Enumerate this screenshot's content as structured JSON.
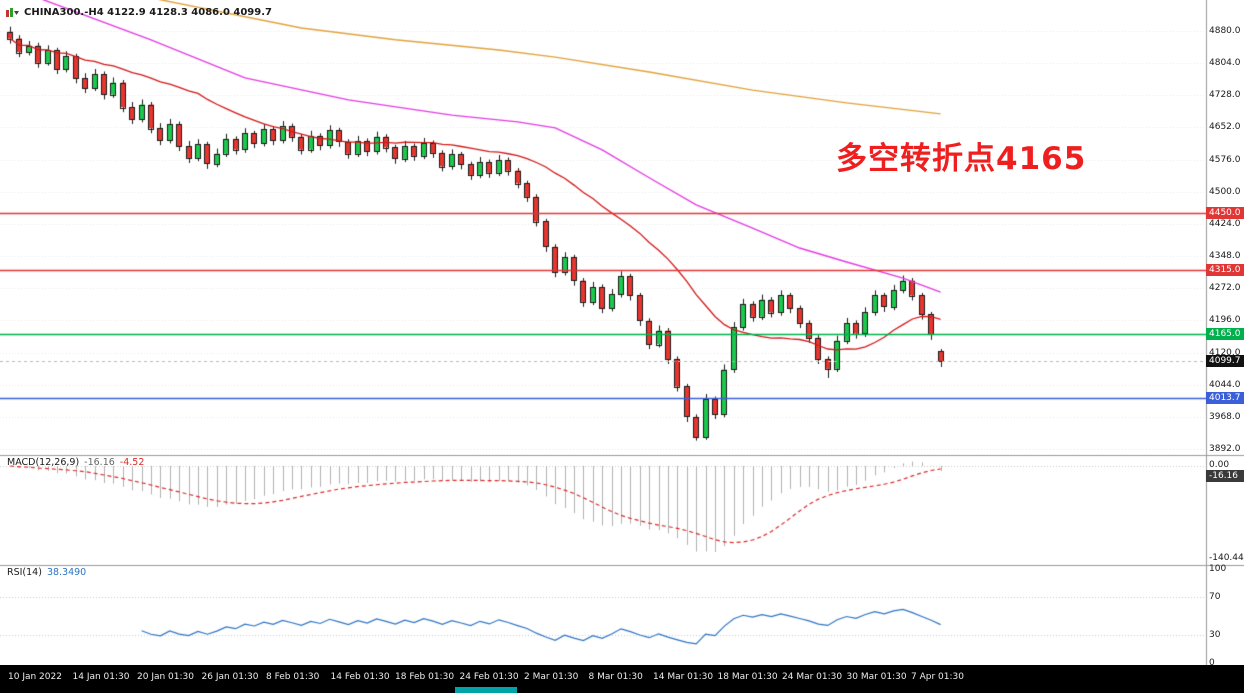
{
  "window": {
    "symbol_line": "CHINA300.-H4 4122.9 4128.3 4086.0 4099.7"
  },
  "annotation": {
    "text": "多空转折点4165",
    "color": "#ef1f1f"
  },
  "chart_data": {
    "type": "candlestick",
    "symbol": "CHINA300",
    "timeframe": "H4",
    "last_ohlc": {
      "open": 4122.9,
      "high": 4128.3,
      "low": 4086.0,
      "close": 4099.7
    },
    "ylim": [
      3878,
      4953
    ],
    "price_axis_ticks": [
      "4880.0",
      "4804.0",
      "4728.0",
      "4652.0",
      "4576.0",
      "4500.0",
      "4424.0",
      "4348.0",
      "4272.0",
      "4196.0",
      "4120.0",
      "4044.0",
      "3968.0",
      "3892.0"
    ],
    "colors": {
      "up": "#1bc94d",
      "down": "#e8352e",
      "outline": "#1a1a1a",
      "grid": "#e9e9e9",
      "ma_fast": "#d01818",
      "ma_mid": "#e23ce2",
      "ma_slow": "#e0a23c",
      "macd_hist": "#b0b0b0",
      "macd_signal": "#d92b2b",
      "rsi": "#2d74c4"
    },
    "candles": [
      [
        4878,
        4890,
        4850,
        4862
      ],
      [
        4862,
        4870,
        4818,
        4830
      ],
      [
        4830,
        4856,
        4822,
        4845
      ],
      [
        4845,
        4852,
        4793,
        4805
      ],
      [
        4805,
        4846,
        4798,
        4835
      ],
      [
        4835,
        4840,
        4778,
        4790
      ],
      [
        4790,
        4832,
        4782,
        4820
      ],
      [
        4820,
        4826,
        4756,
        4768
      ],
      [
        4768,
        4780,
        4733,
        4745
      ],
      [
        4745,
        4790,
        4738,
        4778
      ],
      [
        4778,
        4784,
        4718,
        4730
      ],
      [
        4730,
        4770,
        4722,
        4758
      ],
      [
        4758,
        4764,
        4688,
        4700
      ],
      [
        4700,
        4712,
        4660,
        4672
      ],
      [
        4672,
        4718,
        4664,
        4706
      ],
      [
        4706,
        4712,
        4638,
        4650
      ],
      [
        4650,
        4662,
        4610,
        4622
      ],
      [
        4622,
        4672,
        4614,
        4660
      ],
      [
        4660,
        4666,
        4596,
        4608
      ],
      [
        4608,
        4620,
        4568,
        4580
      ],
      [
        4580,
        4624,
        4572,
        4612
      ],
      [
        4612,
        4618,
        4554,
        4566
      ],
      [
        4566,
        4602,
        4558,
        4590
      ],
      [
        4590,
        4637,
        4582,
        4625
      ],
      [
        4625,
        4631,
        4588,
        4600
      ],
      [
        4600,
        4650,
        4592,
        4638
      ],
      [
        4638,
        4644,
        4603,
        4615
      ],
      [
        4615,
        4660,
        4607,
        4648
      ],
      [
        4648,
        4654,
        4610,
        4622
      ],
      [
        4622,
        4667,
        4614,
        4655
      ],
      [
        4655,
        4661,
        4618,
        4630
      ],
      [
        4630,
        4636,
        4588,
        4600
      ],
      [
        4600,
        4644,
        4592,
        4632
      ],
      [
        4632,
        4638,
        4598,
        4610
      ],
      [
        4610,
        4657,
        4602,
        4645
      ],
      [
        4645,
        4651,
        4606,
        4618
      ],
      [
        4618,
        4624,
        4578,
        4590
      ],
      [
        4590,
        4632,
        4582,
        4620
      ],
      [
        4620,
        4626,
        4584,
        4596
      ],
      [
        4596,
        4642,
        4588,
        4630
      ],
      [
        4630,
        4636,
        4593,
        4605
      ],
      [
        4605,
        4611,
        4566,
        4578
      ],
      [
        4578,
        4620,
        4570,
        4608
      ],
      [
        4608,
        4614,
        4573,
        4585
      ],
      [
        4585,
        4627,
        4577,
        4615
      ],
      [
        4615,
        4621,
        4580,
        4592
      ],
      [
        4592,
        4598,
        4548,
        4560
      ],
      [
        4560,
        4600,
        4552,
        4588
      ],
      [
        4588,
        4594,
        4553,
        4565
      ],
      [
        4565,
        4571,
        4528,
        4540
      ],
      [
        4540,
        4582,
        4532,
        4570
      ],
      [
        4570,
        4576,
        4533,
        4545
      ],
      [
        4545,
        4587,
        4537,
        4575
      ],
      [
        4575,
        4581,
        4538,
        4550
      ],
      [
        4550,
        4556,
        4508,
        4520
      ],
      [
        4520,
        4526,
        4476,
        4488
      ],
      [
        4488,
        4494,
        4418,
        4430
      ],
      [
        4430,
        4436,
        4358,
        4370
      ],
      [
        4370,
        4376,
        4298,
        4310
      ],
      [
        4310,
        4357,
        4302,
        4345
      ],
      [
        4345,
        4351,
        4278,
        4290
      ],
      [
        4290,
        4296,
        4228,
        4240
      ],
      [
        4240,
        4287,
        4232,
        4275
      ],
      [
        4275,
        4281,
        4213,
        4225
      ],
      [
        4225,
        4270,
        4217,
        4258
      ],
      [
        4258,
        4312,
        4250,
        4300
      ],
      [
        4300,
        4306,
        4243,
        4255
      ],
      [
        4255,
        4261,
        4183,
        4195
      ],
      [
        4195,
        4201,
        4128,
        4140
      ],
      [
        4140,
        4184,
        4132,
        4172
      ],
      [
        4172,
        4178,
        4093,
        4105
      ],
      [
        4105,
        4111,
        4028,
        4040
      ],
      [
        4040,
        4046,
        3956,
        3968
      ],
      [
        3968,
        3974,
        3912,
        3920
      ],
      [
        3920,
        4022,
        3914,
        4010
      ],
      [
        4010,
        4016,
        3963,
        3975
      ],
      [
        3975,
        4092,
        3967,
        4080
      ],
      [
        4080,
        4192,
        4072,
        4180
      ],
      [
        4180,
        4247,
        4172,
        4235
      ],
      [
        4235,
        4241,
        4193,
        4205
      ],
      [
        4205,
        4257,
        4197,
        4245
      ],
      [
        4245,
        4251,
        4203,
        4215
      ],
      [
        4215,
        4267,
        4207,
        4255
      ],
      [
        4255,
        4261,
        4213,
        4225
      ],
      [
        4225,
        4231,
        4178,
        4190
      ],
      [
        4190,
        4196,
        4143,
        4155
      ],
      [
        4155,
        4161,
        4093,
        4105
      ],
      [
        4105,
        4111,
        4060,
        4082
      ],
      [
        4082,
        4160,
        4074,
        4148
      ],
      [
        4148,
        4202,
        4140,
        4190
      ],
      [
        4190,
        4196,
        4153,
        4165
      ],
      [
        4165,
        4227,
        4157,
        4215
      ],
      [
        4215,
        4267,
        4207,
        4255
      ],
      [
        4255,
        4261,
        4216,
        4228
      ],
      [
        4228,
        4280,
        4220,
        4268
      ],
      [
        4268,
        4302,
        4260,
        4290
      ],
      [
        4290,
        4296,
        4243,
        4255
      ],
      [
        4255,
        4261,
        4198,
        4210
      ],
      [
        4210,
        4216,
        4150,
        4162
      ],
      [
        4122.9,
        4128.3,
        4086.0,
        4099.7
      ]
    ],
    "overlays": {
      "ma_fast": {
        "name": "fast-ma",
        "period": 21
      },
      "ma_mid": {
        "name": "mid-ma",
        "points": [
          [
            3,
            4958
          ],
          [
            15,
            4859
          ],
          [
            25,
            4769
          ],
          [
            36,
            4717
          ],
          [
            47,
            4681
          ],
          [
            54,
            4665
          ],
          [
            58,
            4651
          ],
          [
            63,
            4599
          ],
          [
            68,
            4533
          ],
          [
            73,
            4469
          ],
          [
            79,
            4414
          ],
          [
            84,
            4367
          ],
          [
            89,
            4334
          ],
          [
            95,
            4296
          ],
          [
            99,
            4263
          ]
        ]
      },
      "ma_slow": {
        "name": "slow-ma",
        "points": [
          [
            15,
            4958
          ],
          [
            31,
            4887
          ],
          [
            41,
            4859
          ],
          [
            52,
            4835
          ],
          [
            58,
            4818
          ],
          [
            68,
            4783
          ],
          [
            79,
            4740
          ],
          [
            89,
            4710
          ],
          [
            99,
            4684
          ]
        ]
      }
    },
    "levels": [
      {
        "price": 4450.0,
        "label": "4450.0",
        "color": "#e03636"
      },
      {
        "price": 4315.0,
        "label": "4315.0",
        "color": "#e03636"
      },
      {
        "price": 4165.0,
        "label": "4165.0",
        "color": "#00b04c"
      },
      {
        "price": 4013.7,
        "label": "4013.7",
        "color": "#3b5fd9"
      }
    ],
    "current_price": {
      "value": 4099.7,
      "label": "4099.7",
      "color": "#111111"
    },
    "indicators": {
      "macd": {
        "label": "MACD(12,26,9)",
        "value_main": "-16.16",
        "value_signal": "-4.52",
        "params": [
          12,
          26,
          9
        ],
        "axis_top_label": "0.00",
        "axis_bottom_label": "-140.44",
        "tag": "-16.16"
      },
      "rsi": {
        "label": "RSI(14)",
        "value": "38.3490",
        "period": 14,
        "axis_labels": [
          "100",
          "70",
          "30",
          "0"
        ],
        "levels": [
          70,
          30
        ]
      }
    },
    "time_axis": [
      "10 Jan 2022",
      "14 Jan 01:30",
      "20 Jan 01:30",
      "26 Jan 01:30",
      "8 Feb 01:30",
      "14 Feb 01:30",
      "18 Feb 01:30",
      "24 Feb 01:30",
      "2 Mar 01:30",
      "8 Mar 01:30",
      "14 Mar 01:30",
      "18 Mar 01:30",
      "24 Mar 01:30",
      "30 Mar 01:30",
      "7 Apr 01:30"
    ]
  }
}
